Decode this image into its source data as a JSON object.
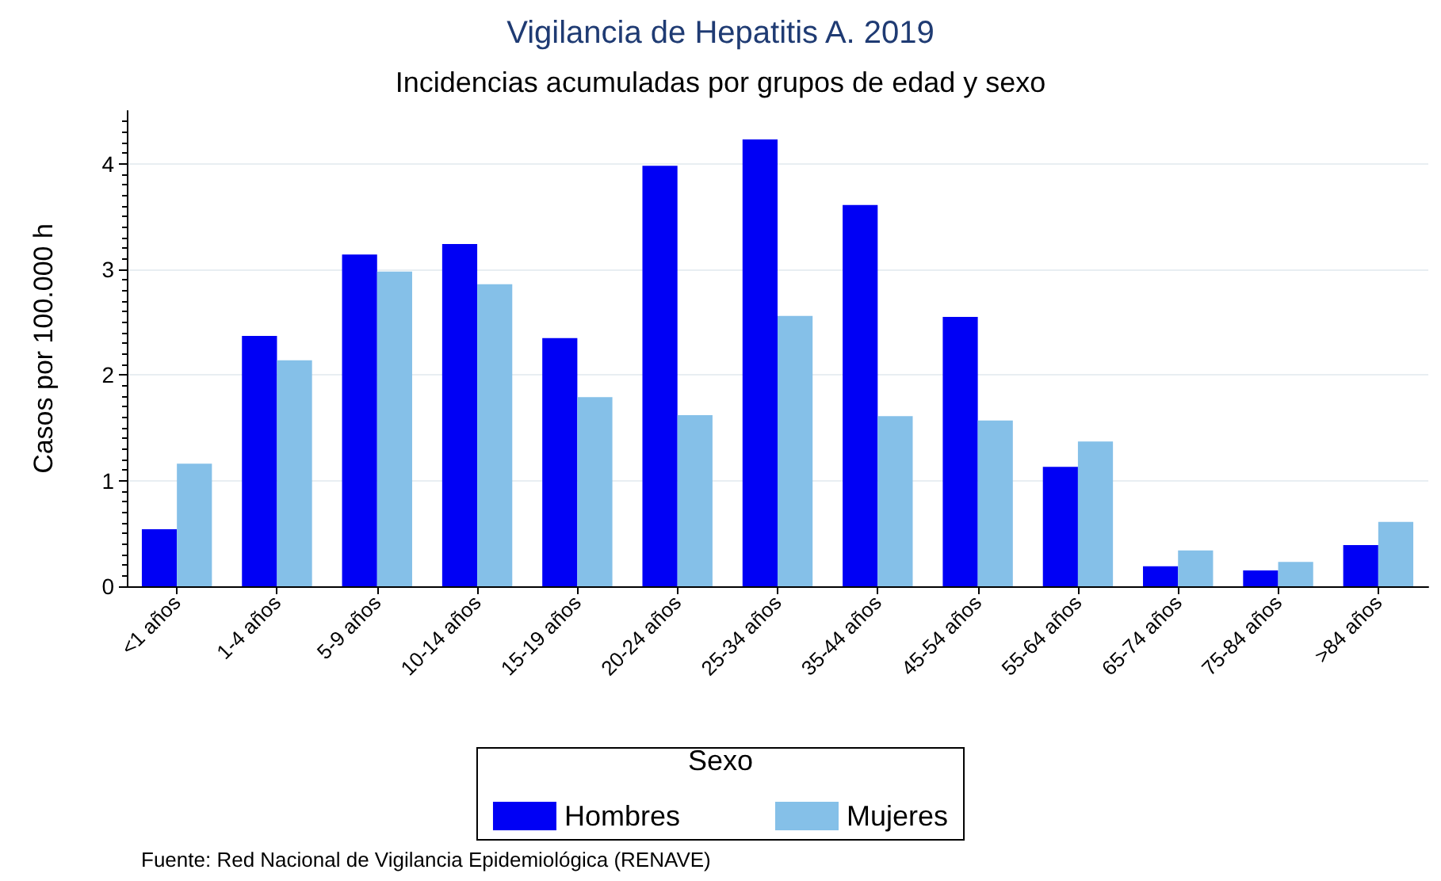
{
  "chart_data": {
    "type": "bar",
    "title": "Vigilancia de Hepatitis A. 2019",
    "subtitle": "Incidencias acumuladas por grupos de edad y sexo",
    "ylabel": "Casos por 100.000 h",
    "legend_title": "Sexo",
    "annotations": [
      "Fuente: Red Nacional de Vigilancia Epidemiológica (RENAVE)"
    ],
    "categories": [
      "<1 años",
      "1-4 años",
      "5-9 años",
      "10-14 años",
      "15-19 años",
      "20-24 años",
      "25-34 años",
      "35-44 años",
      "45-54 años",
      "55-64 años",
      "65-74 años",
      "75-84 años",
      ">84 años"
    ],
    "series": [
      {
        "name": "Hombres",
        "color": "#0000f5",
        "values": [
          0.54,
          2.37,
          3.14,
          3.24,
          2.35,
          3.98,
          4.23,
          3.61,
          2.55,
          1.13,
          0.19,
          0.15,
          0.39
        ]
      },
      {
        "name": "Mujeres",
        "color": "#85c0e8",
        "values": [
          1.16,
          2.14,
          2.98,
          2.86,
          1.79,
          1.62,
          2.56,
          1.61,
          1.57,
          1.37,
          0.34,
          0.23,
          0.61
        ]
      }
    ],
    "ylim": [
      0,
      4.5
    ],
    "yticks": [
      0,
      1,
      2,
      3,
      4
    ],
    "grid": "y",
    "legend": "bottom"
  }
}
